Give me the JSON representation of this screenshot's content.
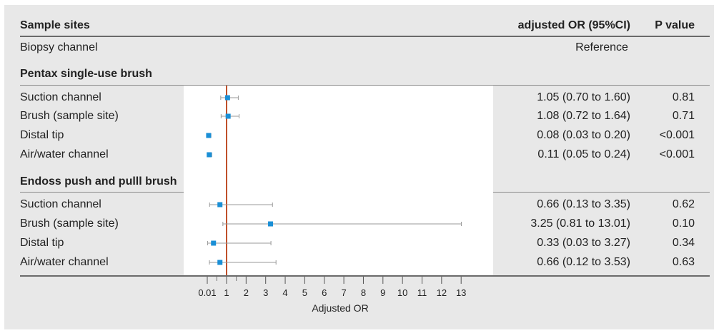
{
  "header": {
    "col_site": "Sample sites",
    "col_or": "adjusted OR (95%CI)",
    "col_p": "P value"
  },
  "reference_row": {
    "label": "Biopsy channel",
    "value": "Reference"
  },
  "groups": [
    {
      "title": "Pentax single-use brush"
    },
    {
      "title": "Endoss push and pulll brush"
    }
  ],
  "rows": [
    {
      "label": "Suction channel",
      "ci_text": "1.05 (0.70 to 1.60)",
      "p": "0.81"
    },
    {
      "label": "Brush (sample site)",
      "ci_text": "1.08 (0.72 to 1.64)",
      "p": "0.71"
    },
    {
      "label": "Distal tip",
      "ci_text": "0.08 (0.03 to 0.20)",
      "p": "<0.001"
    },
    {
      "label": "Air/water channel",
      "ci_text": "0.11 (0.05 to 0.24)",
      "p": "<0.001"
    },
    {
      "label": "Suction channel",
      "ci_text": "0.66 (0.13 to 3.35)",
      "p": "0.62"
    },
    {
      "label": "Brush (sample site)",
      "ci_text": "3.25 (0.81 to 13.01)",
      "p": "0.10"
    },
    {
      "label": "Distal tip",
      "ci_text": "0.33 (0.03 to 3.27)",
      "p": "0.34"
    },
    {
      "label": "Air/water channel",
      "ci_text": "0.66 (0.12 to 3.53)",
      "p": "0.63"
    }
  ],
  "colors": {
    "point": "#1a8fd6",
    "reference_line": "#c0502b",
    "ci_line": "#999999",
    "panel_bg": "#e8e8e8",
    "plot_bg": "#ffffff"
  },
  "chart_data": {
    "type": "forest",
    "xlabel": "Adjusted OR",
    "reference_value": 1,
    "x_ticks": [
      "0.01",
      "1",
      "2",
      "3",
      "4",
      "5",
      "6",
      "7",
      "8",
      "9",
      "10",
      "11",
      "12",
      "13"
    ],
    "x_tick_values": [
      0.01,
      1,
      2,
      3,
      4,
      5,
      6,
      7,
      8,
      9,
      10,
      11,
      12,
      13
    ],
    "minor_tick_values": [
      0.5,
      1.5
    ],
    "xlim": [
      -1.0,
      14.5
    ],
    "series": [
      {
        "or": 1.05,
        "low": 0.7,
        "high": 1.6
      },
      {
        "or": 1.08,
        "low": 0.72,
        "high": 1.64
      },
      {
        "or": 0.08,
        "low": 0.03,
        "high": 0.2
      },
      {
        "or": 0.11,
        "low": 0.05,
        "high": 0.24
      },
      {
        "or": 0.66,
        "low": 0.13,
        "high": 3.35
      },
      {
        "or": 3.25,
        "low": 0.81,
        "high": 13.01
      },
      {
        "or": 0.33,
        "low": 0.03,
        "high": 3.27
      },
      {
        "or": 0.66,
        "low": 0.12,
        "high": 3.53
      }
    ]
  }
}
